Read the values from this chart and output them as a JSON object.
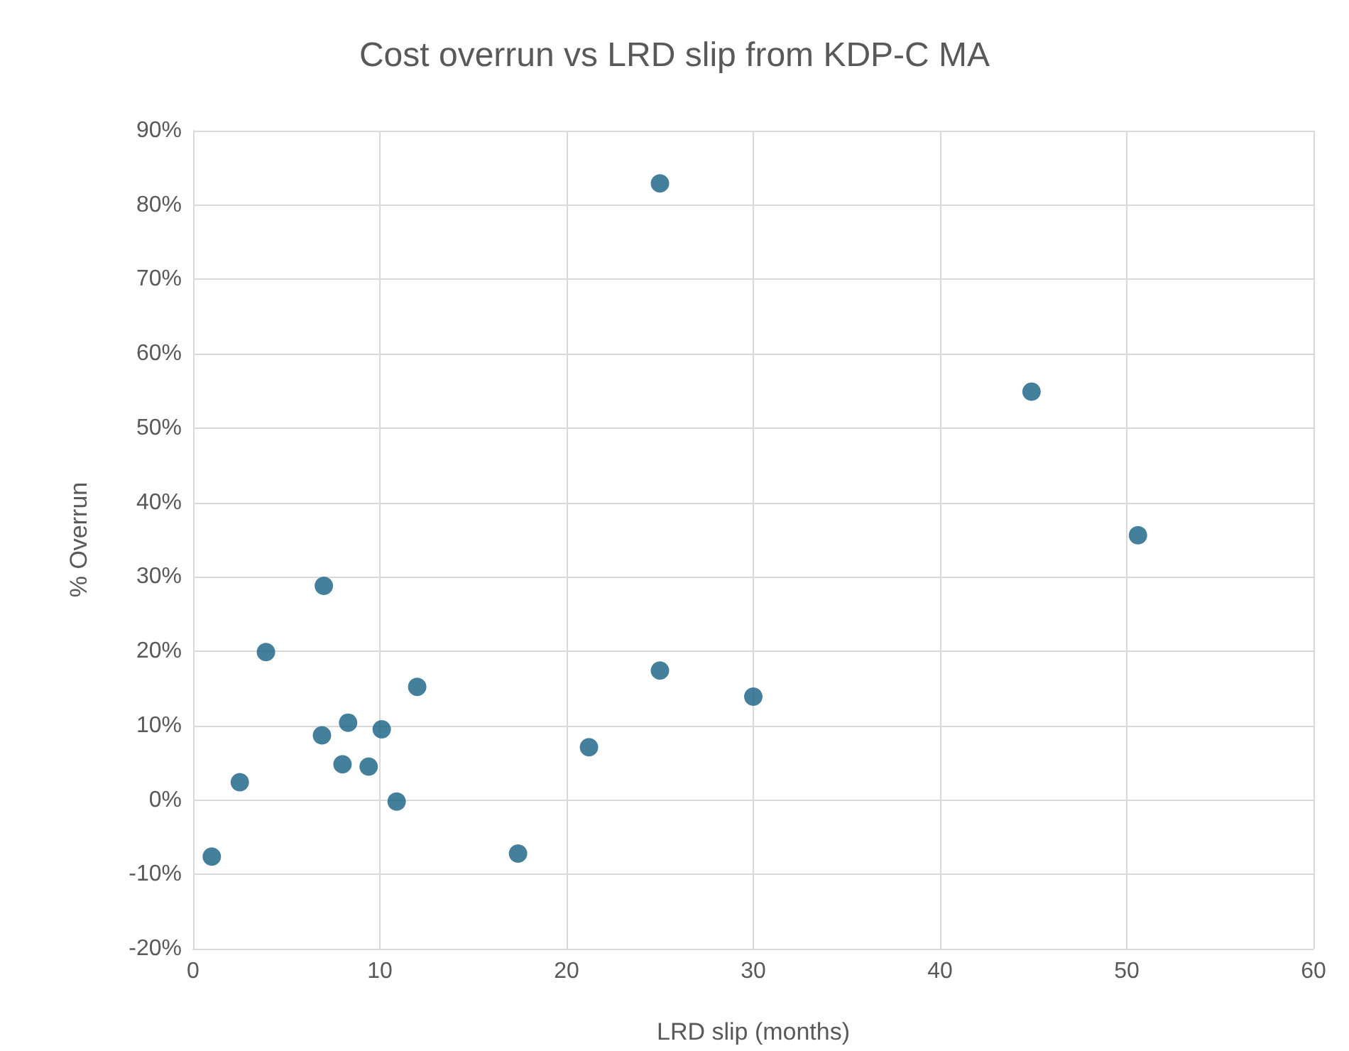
{
  "chart_data": {
    "type": "scatter",
    "title": "Cost overrun vs LRD slip from KDP-C MA",
    "xlabel": "LRD slip (months)",
    "ylabel": "% Overrun",
    "x": [
      1,
      2.5,
      3.9,
      7,
      6.9,
      8,
      8.3,
      9.4,
      10.1,
      10.9,
      12,
      17.4,
      21.2,
      25,
      25,
      30,
      44.9,
      50.6
    ],
    "series": [
      {
        "color": "#156082",
        "values": [
          -7.6,
          2.4,
          19.9,
          28.8,
          8.7,
          4.8,
          10.4,
          4.5,
          9.5,
          -0.2,
          15.2,
          -7.2,
          7.1,
          17.4,
          82.9,
          13.9,
          54.9,
          35.6
        ]
      }
    ],
    "xlim": [
      0,
      60
    ],
    "xticks": [
      0,
      10,
      20,
      30,
      40,
      50,
      60
    ],
    "ylim": [
      -20,
      90
    ],
    "yticks": [
      {
        "value": -20,
        "label": "-20%"
      },
      {
        "value": -10,
        "label": "-10%"
      },
      {
        "value": 0,
        "label": "0%"
      },
      {
        "value": 10,
        "label": "10%"
      },
      {
        "value": 20,
        "label": "20%"
      },
      {
        "value": 30,
        "label": "30%"
      },
      {
        "value": 40,
        "label": "40%"
      },
      {
        "value": 50,
        "label": "50%"
      },
      {
        "value": 60,
        "label": "60%"
      },
      {
        "value": 70,
        "label": "70%"
      },
      {
        "value": 80,
        "label": "80%"
      },
      {
        "value": 90,
        "label": "90%"
      }
    ],
    "grid": true,
    "marker": "circle"
  }
}
